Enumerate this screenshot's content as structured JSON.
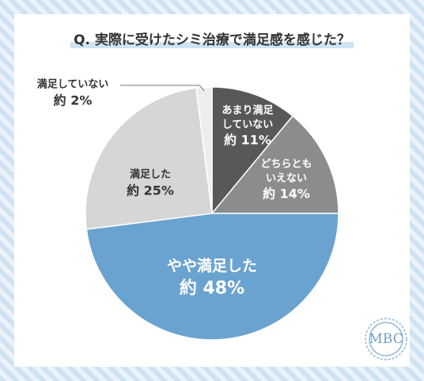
{
  "chart_data": {
    "type": "pie",
    "title": "Q. 実際に受けたシミ治療で満足感を感じた？",
    "categories": [
      "あまり満足していない",
      "どちらともいえない",
      "やや満足した",
      "満足した",
      "満足していない"
    ],
    "values": [
      11,
      14,
      48,
      25,
      2
    ],
    "value_labels": [
      "約 11%",
      "約 14%",
      "約 48%",
      "約 25%",
      "約 2%"
    ],
    "colors": [
      "#585858",
      "#8c8c8c",
      "#6aa3cf",
      "#d6d6d6",
      "#ededed"
    ],
    "start": "top",
    "direction": "clockwise",
    "logo": "MBC"
  }
}
